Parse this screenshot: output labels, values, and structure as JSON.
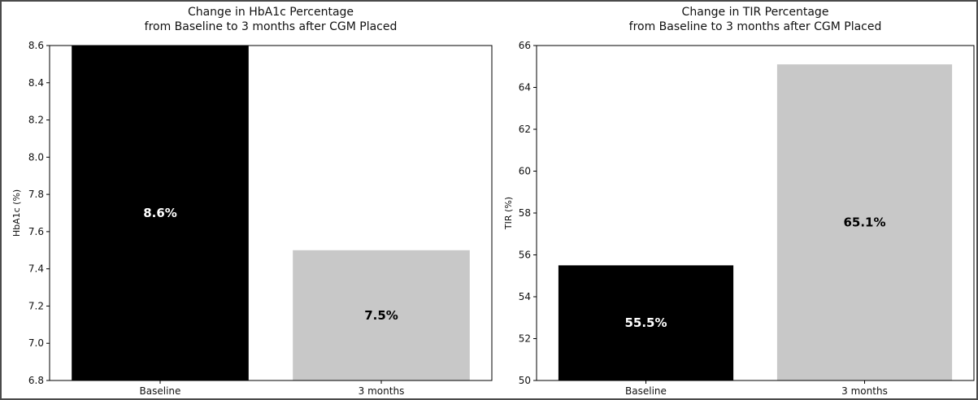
{
  "chart_data": [
    {
      "type": "bar",
      "title_lines": [
        "Change in HbA1c Percentage",
        "from Baseline to 3 months after CGM Placed"
      ],
      "xlabel": "",
      "ylabel": "HbA1c (%)",
      "categories": [
        "Baseline",
        "3 months"
      ],
      "values": [
        8.6,
        7.5
      ],
      "value_labels": [
        "8.6%",
        "7.5%"
      ],
      "bar_colors": [
        "#000000",
        "#c8c8c8"
      ],
      "label_colors": [
        "#ffffff",
        "#000000"
      ],
      "ylim": [
        6.8,
        8.6
      ],
      "yticks": [
        6.8,
        7.0,
        7.2,
        7.4,
        7.6,
        7.8,
        8.0,
        8.2,
        8.4,
        8.6
      ],
      "ytick_labels": [
        "6.8",
        "7.0",
        "7.2",
        "7.4",
        "7.6",
        "7.8",
        "8.0",
        "8.2",
        "8.4",
        "8.6"
      ],
      "grid": false,
      "legend": "none"
    },
    {
      "type": "bar",
      "title_lines": [
        "Change in TIR Percentage",
        "from Baseline to 3 months after CGM Placed"
      ],
      "xlabel": "",
      "ylabel": "TIR (%)",
      "categories": [
        "Baseline",
        "3 months"
      ],
      "values": [
        55.5,
        65.1
      ],
      "value_labels": [
        "55.5%",
        "65.1%"
      ],
      "bar_colors": [
        "#000000",
        "#c8c8c8"
      ],
      "label_colors": [
        "#ffffff",
        "#000000"
      ],
      "ylim": [
        50,
        66
      ],
      "yticks": [
        50,
        52,
        54,
        56,
        58,
        60,
        62,
        64,
        66
      ],
      "ytick_labels": [
        "50",
        "52",
        "54",
        "56",
        "58",
        "60",
        "62",
        "64",
        "66"
      ],
      "grid": false,
      "legend": "none"
    }
  ]
}
